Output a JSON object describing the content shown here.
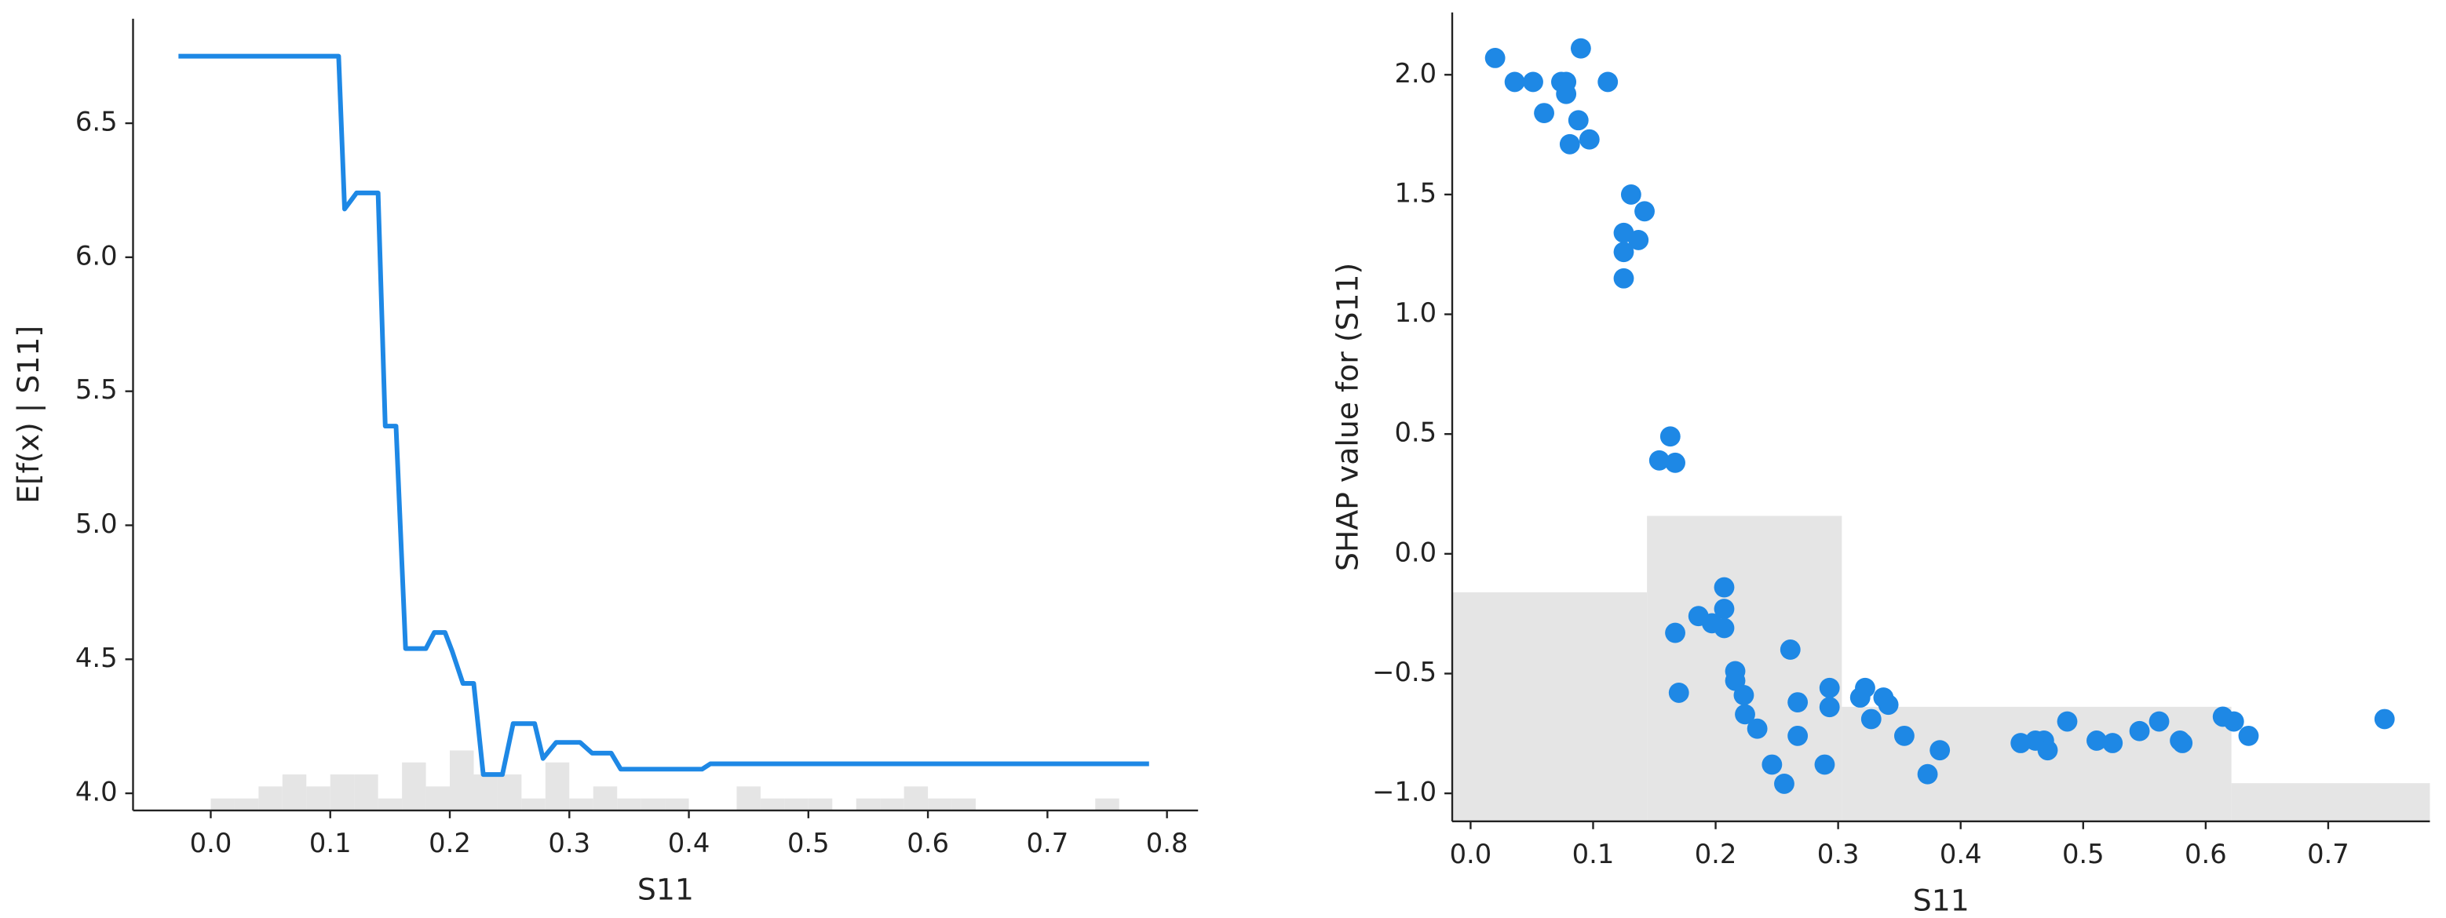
{
  "chart_data": [
    {
      "type": "line",
      "xlabel": "S11",
      "ylabel": "E[f(x) | S11]",
      "color": "#1e88e5",
      "x": [
        -0.027,
        0.107,
        0.112,
        0.122,
        0.14,
        0.146,
        0.155,
        0.163,
        0.18,
        0.187,
        0.196,
        0.202,
        0.211,
        0.22,
        0.228,
        0.244,
        0.253,
        0.271,
        0.278,
        0.289,
        0.309,
        0.319,
        0.335,
        0.343,
        0.411,
        0.418,
        0.785
      ],
      "values": [
        6.75,
        6.75,
        6.18,
        6.24,
        6.24,
        5.37,
        5.37,
        4.54,
        4.54,
        4.6,
        4.6,
        4.53,
        4.41,
        4.41,
        4.07,
        4.07,
        4.26,
        4.26,
        4.13,
        4.19,
        4.19,
        4.15,
        4.15,
        4.09,
        4.09,
        4.11,
        4.11
      ],
      "histogram": {
        "color": "#e5e5e5",
        "bins": [
          0,
          0.02,
          0.04,
          0.06,
          0.08,
          0.1,
          0.12,
          0.14,
          0.16,
          0.18,
          0.2,
          0.22,
          0.24,
          0.26,
          0.28,
          0.3,
          0.32,
          0.34,
          0.36,
          0.38,
          0.4,
          0.42,
          0.44,
          0.46,
          0.48,
          0.5,
          0.52,
          0.54,
          0.56,
          0.58,
          0.6,
          0.62,
          0.64,
          0.66,
          0.68,
          0.7,
          0.72,
          0.74,
          0.76,
          0.78
        ],
        "counts": [
          1,
          1,
          2,
          3,
          2,
          3,
          3,
          1,
          4,
          2,
          5,
          3,
          3,
          1,
          4,
          1,
          2,
          1,
          1,
          1,
          0,
          0,
          2,
          1,
          1,
          1,
          0,
          1,
          1,
          2,
          1,
          1,
          0,
          0,
          0,
          0,
          0,
          1,
          0
        ]
      },
      "xlim": [
        -0.065,
        0.826
      ],
      "ylim": [
        3.936,
        6.89
      ],
      "xticks": [
        {
          "value": 0,
          "label": "0.0"
        },
        0.1,
        0.2,
        0.3,
        0.4,
        0.5,
        0.6,
        0.7,
        0.8
      ],
      "yticks": [
        {
          "value": 4,
          "label": "4.0"
        },
        4.5,
        {
          "value": 5,
          "label": "5.0"
        },
        5.5,
        {
          "value": 6,
          "label": "6.0"
        },
        6.5
      ]
    },
    {
      "type": "scatter",
      "xlabel": "S11",
      "ylabel": "SHAP value for (S11)",
      "color": "#1e88e5",
      "x": [
        0.02,
        0.036,
        0.051,
        0.06,
        0.074,
        0.078,
        0.078,
        0.09,
        0.088,
        0.097,
        0.081,
        0.112,
        0.131,
        0.142,
        0.125,
        0.137,
        0.125,
        0.125,
        0.163,
        0.154,
        0.167,
        0.167,
        0.17,
        0.186,
        0.197,
        0.207,
        0.207,
        0.207,
        0.216,
        0.216,
        0.223,
        0.224,
        0.234,
        0.246,
        0.256,
        0.261,
        0.267,
        0.267,
        0.289,
        0.293,
        0.293,
        0.318,
        0.322,
        0.327,
        0.337,
        0.341,
        0.354,
        0.373,
        0.383,
        0.449,
        0.461,
        0.468,
        0.471,
        0.487,
        0.511,
        0.524,
        0.546,
        0.562,
        0.579,
        0.581,
        0.614,
        0.623,
        0.635,
        0.746
      ],
      "values": [
        2.07,
        1.97,
        1.97,
        1.84,
        1.97,
        1.97,
        1.92,
        2.11,
        1.81,
        1.73,
        1.71,
        1.97,
        1.5,
        1.43,
        1.34,
        1.31,
        1.26,
        1.15,
        0.49,
        0.39,
        0.38,
        -0.33,
        -0.58,
        -0.26,
        -0.29,
        -0.14,
        -0.23,
        -0.31,
        -0.49,
        -0.53,
        -0.59,
        -0.67,
        -0.73,
        -0.88,
        -0.96,
        -0.4,
        -0.62,
        -0.76,
        -0.88,
        -0.56,
        -0.64,
        -0.6,
        -0.56,
        -0.69,
        -0.6,
        -0.63,
        -0.76,
        -0.92,
        -0.82,
        -0.79,
        -0.78,
        -0.78,
        -0.82,
        -0.7,
        -0.78,
        -0.79,
        -0.74,
        -0.7,
        -0.78,
        -0.79,
        -0.68,
        -0.7,
        -0.76,
        -0.69
      ],
      "histogram": {
        "color": "#e5e5e5",
        "bins": [
          -0.015,
          0.144,
          0.303,
          0.621,
          0.783
        ],
        "counts": [
          6,
          8,
          3,
          1
        ]
      },
      "xlim": [
        -0.015,
        0.783
      ],
      "ylim": [
        -1.117,
        2.26
      ],
      "xticks": [
        {
          "value": 0,
          "label": "0.0"
        },
        0.1,
        0.2,
        0.3,
        0.4,
        0.5,
        0.6,
        0.7
      ],
      "yticks": [
        {
          "value": -1,
          "label": "−1.0"
        },
        {
          "value": -0.5,
          "label": "−0.5"
        },
        {
          "value": 0,
          "label": "0.0"
        },
        0.5,
        {
          "value": 1,
          "label": "1.0"
        },
        1.5,
        {
          "value": 2,
          "label": "2.0"
        }
      ]
    }
  ]
}
